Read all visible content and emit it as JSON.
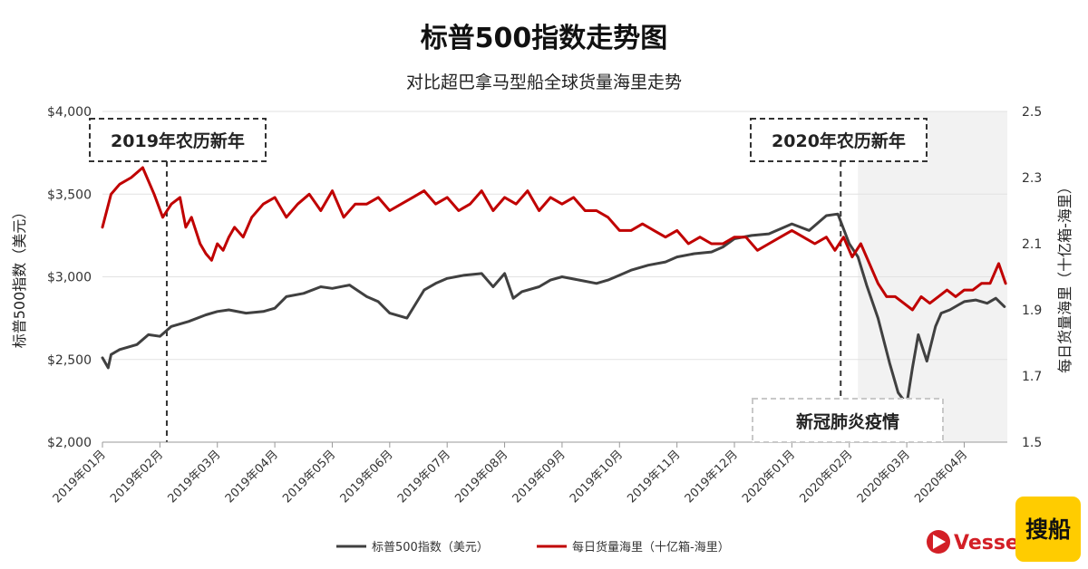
{
  "chart_data": {
    "type": "line",
    "title": "标普500指数走势图",
    "subtitle": "对比超巴拿马型船全球货量海里走势",
    "ylabel_left": "标普500指数（美元）",
    "ylabel_right": "每日货量海里（十亿箱-海里）",
    "ylim_left": [
      2000,
      4000
    ],
    "ylim_right": [
      1.5,
      2.5
    ],
    "yticks_left": [
      "$2,000",
      "$2,500",
      "$3,000",
      "$3,500",
      "$4,000"
    ],
    "yticks_left_values": [
      2000,
      2500,
      3000,
      3500,
      4000
    ],
    "yticks_right": [
      "1.5",
      "1.7",
      "1.9",
      "2.1",
      "2.3",
      "2.5"
    ],
    "yticks_right_values": [
      1.5,
      1.7,
      1.9,
      2.1,
      2.3,
      2.5
    ],
    "x_range": [
      0,
      15.75
    ],
    "x_categories": [
      "2019年01月",
      "2019年02月",
      "2019年03月",
      "2019年04月",
      "2019年05月",
      "2019年06月",
      "2019年07月",
      "2019年08月",
      "2019年09月",
      "2019年10月",
      "2019年11月",
      "2019年12月",
      "2020年01月",
      "2020年02月",
      "2020年03月",
      "2020年04月"
    ],
    "grid": true,
    "legend_position": "bottom",
    "series": [
      {
        "name": "标普500指数（美元）",
        "axis": "left",
        "color": "#404040",
        "x": [
          0,
          0.1,
          0.15,
          0.3,
          0.6,
          0.8,
          1.0,
          1.2,
          1.5,
          1.8,
          2.0,
          2.2,
          2.5,
          2.8,
          3.0,
          3.2,
          3.5,
          3.8,
          4.0,
          4.3,
          4.6,
          4.8,
          5.0,
          5.3,
          5.6,
          5.8,
          6.0,
          6.3,
          6.6,
          6.8,
          7.0,
          7.15,
          7.3,
          7.6,
          7.8,
          8.0,
          8.3,
          8.6,
          8.8,
          9.0,
          9.2,
          9.5,
          9.8,
          10.0,
          10.3,
          10.6,
          10.8,
          11.0,
          11.3,
          11.6,
          11.8,
          12.0,
          12.3,
          12.6,
          12.8,
          13.0,
          13.15,
          13.3,
          13.5,
          13.7,
          13.85,
          14.0,
          14.1,
          14.2,
          14.35,
          14.5,
          14.6,
          14.75,
          14.9,
          15.0,
          15.2,
          15.4,
          15.55,
          15.7
        ],
        "values": [
          2510,
          2450,
          2530,
          2560,
          2590,
          2650,
          2640,
          2700,
          2730,
          2770,
          2790,
          2800,
          2780,
          2790,
          2810,
          2880,
          2900,
          2940,
          2930,
          2950,
          2880,
          2850,
          2780,
          2750,
          2920,
          2960,
          2990,
          3010,
          3020,
          2940,
          3020,
          2870,
          2910,
          2940,
          2980,
          3000,
          2980,
          2960,
          2980,
          3010,
          3040,
          3070,
          3090,
          3120,
          3140,
          3150,
          3180,
          3230,
          3250,
          3260,
          3290,
          3320,
          3280,
          3370,
          3380,
          3200,
          3120,
          2950,
          2750,
          2480,
          2300,
          2230,
          2450,
          2650,
          2490,
          2700,
          2780,
          2800,
          2830,
          2850,
          2860,
          2840,
          2870,
          2820
        ]
      },
      {
        "name": "每日货量海里（十亿箱-海里）",
        "axis": "right",
        "color": "#c00000",
        "x": [
          0,
          0.15,
          0.3,
          0.5,
          0.7,
          0.9,
          1.05,
          1.2,
          1.35,
          1.45,
          1.55,
          1.7,
          1.8,
          1.9,
          2.0,
          2.1,
          2.2,
          2.3,
          2.45,
          2.6,
          2.8,
          3.0,
          3.2,
          3.4,
          3.6,
          3.8,
          4.0,
          4.2,
          4.4,
          4.6,
          4.8,
          5.0,
          5.2,
          5.4,
          5.6,
          5.8,
          6.0,
          6.2,
          6.4,
          6.6,
          6.8,
          7.0,
          7.2,
          7.4,
          7.6,
          7.8,
          8.0,
          8.2,
          8.4,
          8.6,
          8.8,
          9.0,
          9.2,
          9.4,
          9.6,
          9.8,
          10.0,
          10.2,
          10.4,
          10.6,
          10.8,
          11.0,
          11.2,
          11.4,
          11.6,
          11.8,
          12.0,
          12.2,
          12.4,
          12.6,
          12.75,
          12.9,
          13.05,
          13.2,
          13.35,
          13.5,
          13.65,
          13.8,
          13.95,
          14.1,
          14.25,
          14.4,
          14.55,
          14.7,
          14.85,
          15.0,
          15.15,
          15.3,
          15.45,
          15.6,
          15.72
        ],
        "values": [
          2.15,
          2.25,
          2.28,
          2.3,
          2.33,
          2.25,
          2.18,
          2.22,
          2.24,
          2.15,
          2.18,
          2.1,
          2.07,
          2.05,
          2.1,
          2.08,
          2.12,
          2.15,
          2.12,
          2.18,
          2.22,
          2.24,
          2.18,
          2.22,
          2.25,
          2.2,
          2.26,
          2.18,
          2.22,
          2.22,
          2.24,
          2.2,
          2.22,
          2.24,
          2.26,
          2.22,
          2.24,
          2.2,
          2.22,
          2.26,
          2.2,
          2.24,
          2.22,
          2.26,
          2.2,
          2.24,
          2.22,
          2.24,
          2.2,
          2.2,
          2.18,
          2.14,
          2.14,
          2.16,
          2.14,
          2.12,
          2.14,
          2.1,
          2.12,
          2.1,
          2.1,
          2.12,
          2.12,
          2.08,
          2.1,
          2.12,
          2.14,
          2.12,
          2.1,
          2.12,
          2.08,
          2.12,
          2.06,
          2.1,
          2.04,
          1.98,
          1.94,
          1.94,
          1.92,
          1.9,
          1.94,
          1.92,
          1.94,
          1.96,
          1.94,
          1.96,
          1.96,
          1.98,
          1.98,
          2.04,
          1.98
        ]
      }
    ],
    "shaded_region": {
      "x_start": 13.15,
      "x_end": 15.75,
      "label": "新冠肺炎疫情",
      "color": "#f2f2f2"
    },
    "annotations": [
      {
        "label": "2019年农历新年",
        "x": 1.12
      },
      {
        "label": "2020年农历新年",
        "x": 12.85
      }
    ]
  },
  "brand": {
    "name": "Vessels",
    "badge_text": "搜船",
    "badge_color": "#ffcc00",
    "accent": "#d31f26"
  }
}
